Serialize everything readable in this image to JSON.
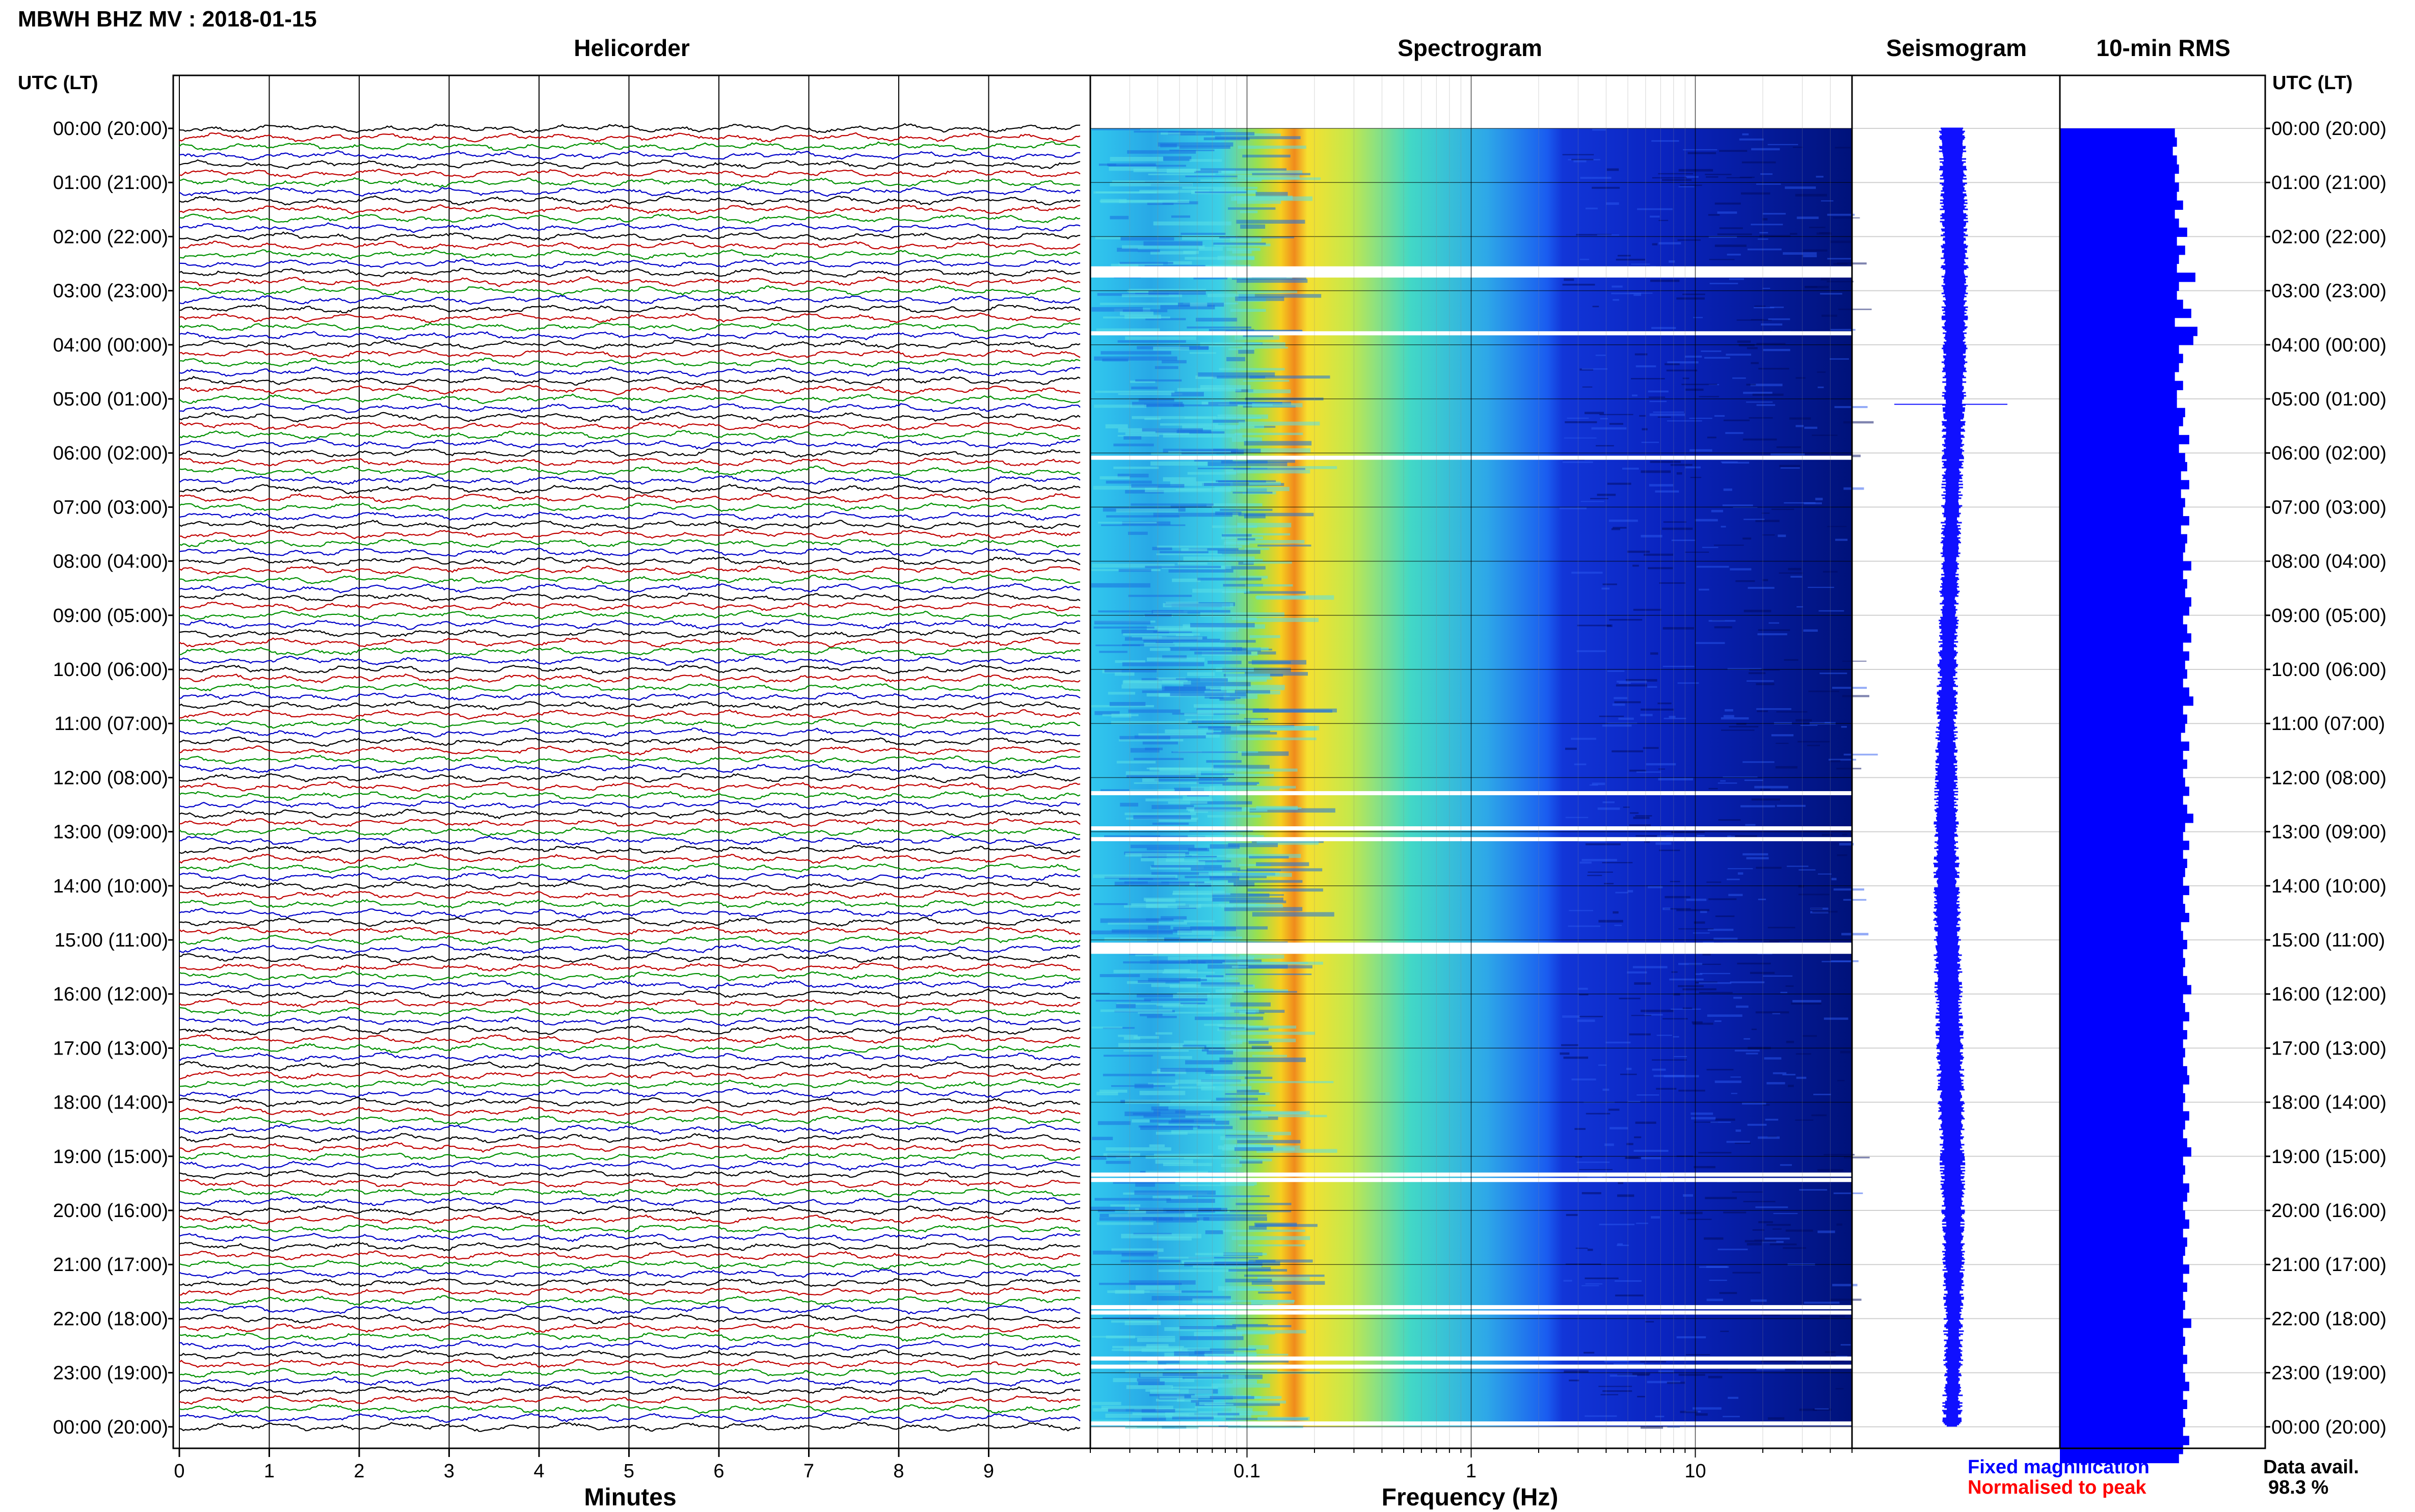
{
  "header": {
    "title": "MBWH BHZ MV : 2018-01-15",
    "panels": {
      "helicorder": "Helicorder",
      "spectrogram": "Spectrogram",
      "seismogram": "Seismogram",
      "rms": "10-min RMS"
    },
    "left_axis_title": "UTC (LT)",
    "right_axis_title": "UTC (LT)"
  },
  "footer": {
    "fixed_magnification": "Fixed magnification",
    "normalised_to_peak": "Normalised to peak",
    "data_avail_label": "Data avail.",
    "data_avail_value": "98.3 %"
  },
  "colors": {
    "trace_cycle": [
      "#000000",
      "#c00000",
      "#009000",
      "#0000c8"
    ],
    "rms_bar": "#0000ff",
    "fixed_magnification": "#0000ff",
    "normalised_to_peak": "#ff0000"
  },
  "chart_data": [
    {
      "type": "line",
      "panel": "helicorder",
      "title": "Helicorder",
      "xlabel": "Minutes",
      "x_ticks": [
        "0",
        "1",
        "2",
        "3",
        "4",
        "5",
        "6",
        "7",
        "8",
        "9"
      ],
      "xlim": [
        0,
        10
      ],
      "rows_per_hour": 6,
      "hour_labels": [
        "00:00 (20:00)",
        "01:00 (21:00)",
        "02:00 (22:00)",
        "03:00 (23:00)",
        "04:00 (00:00)",
        "05:00 (01:00)",
        "06:00 (02:00)",
        "07:00 (03:00)",
        "08:00 (04:00)",
        "09:00 (05:00)",
        "10:00 (06:00)",
        "11:00 (07:00)",
        "12:00 (08:00)",
        "13:00 (09:00)",
        "14:00 (10:00)",
        "15:00 (11:00)",
        "16:00 (12:00)",
        "17:00 (13:00)",
        "18:00 (14:00)",
        "19:00 (15:00)",
        "20:00 (16:00)",
        "21:00 (17:00)",
        "22:00 (18:00)",
        "23:00 (19:00)",
        "00:00 (20:00)"
      ]
    },
    {
      "type": "heatmap",
      "panel": "spectrogram",
      "title": "Spectrogram",
      "xlabel": "Frequency (Hz)",
      "x_scale": "log",
      "xlim": [
        0.02,
        50
      ],
      "x_ticks": [
        "0.1",
        "1",
        "10"
      ],
      "gap_hours": [
        2.55,
        3.75,
        6.05,
        12.25,
        12.9,
        13.1,
        15.05,
        19.3,
        19.4,
        21.75,
        21.85,
        22.7,
        22.85,
        23.9
      ]
    },
    {
      "type": "line",
      "panel": "seismogram",
      "title": "Seismogram"
    },
    {
      "type": "bar",
      "panel": "rms",
      "title": "10-min RMS",
      "orientation": "horizontal",
      "y_unit": "hour UTC",
      "note": "values relative (0-1)",
      "values": [
        0.56,
        0.57,
        0.55,
        0.57,
        0.58,
        0.56,
        0.58,
        0.57,
        0.6,
        0.56,
        0.58,
        0.62,
        0.57,
        0.61,
        0.58,
        0.57,
        0.66,
        0.58,
        0.57,
        0.6,
        0.64,
        0.56,
        0.67,
        0.65,
        0.58,
        0.6,
        0.58,
        0.56,
        0.6,
        0.57,
        0.57,
        0.61,
        0.6,
        0.58,
        0.63,
        0.58,
        0.61,
        0.62,
        0.59,
        0.63,
        0.59,
        0.61,
        0.6,
        0.63,
        0.59,
        0.62,
        0.61,
        0.6,
        0.64,
        0.6,
        0.62,
        0.61,
        0.64,
        0.63,
        0.6,
        0.62,
        0.64,
        0.6,
        0.63,
        0.61,
        0.62,
        0.6,
        0.63,
        0.65,
        0.6,
        0.62,
        0.61,
        0.59,
        0.63,
        0.6,
        0.62,
        0.6,
        0.61,
        0.63,
        0.6,
        0.62,
        0.65,
        0.61,
        0.6,
        0.63,
        0.6,
        0.62,
        0.61,
        0.6,
        0.63,
        0.6,
        0.61,
        0.63,
        0.59,
        0.6,
        0.62,
        0.6,
        0.61,
        0.6,
        0.62,
        0.64,
        0.6,
        0.61,
        0.63,
        0.6,
        0.62,
        0.6,
        0.61,
        0.6,
        0.62,
        0.63,
        0.6,
        0.61,
        0.6,
        0.63,
        0.61,
        0.6,
        0.62,
        0.64,
        0.6,
        0.61,
        0.6,
        0.63,
        0.62,
        0.6,
        0.61,
        0.63,
        0.6,
        0.62,
        0.61,
        0.6,
        0.63,
        0.6,
        0.62,
        0.6,
        0.61,
        0.6,
        0.64,
        0.6,
        0.61,
        0.6,
        0.62,
        0.6,
        0.61,
        0.63,
        0.6,
        0.62,
        0.6,
        0.61,
        0.6,
        0.63,
        0.6,
        0.58
      ]
    }
  ]
}
